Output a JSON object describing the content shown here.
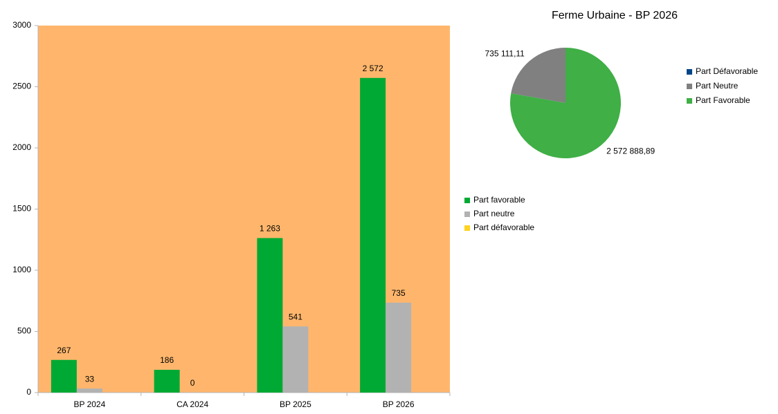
{
  "chart_data": [
    {
      "type": "bar",
      "categories": [
        "BP 2024",
        "CA 2024",
        "BP 2025",
        "BP 2026"
      ],
      "series": [
        {
          "name": "Part favorable",
          "color": "#00a933",
          "values": [
            267,
            186,
            1263,
            2572
          ],
          "value_labels": [
            "267",
            "186",
            "1 263",
            "2 572"
          ]
        },
        {
          "name": "Part neutre",
          "color": "#b2b2b2",
          "values": [
            33,
            0,
            541,
            735
          ]
        },
        {
          "name": "Part défavorable",
          "color": "#ffd320",
          "values": [
            null,
            null,
            null,
            null
          ]
        }
      ],
      "ylim": [
        0,
        3000
      ],
      "yticks": [
        0,
        500,
        1000,
        1500,
        2000,
        2500,
        3000
      ],
      "background": "#ffb66c",
      "legend": "right"
    },
    {
      "type": "pie",
      "title": "Ferme Urbaine - BP 2026",
      "series": [
        {
          "name": "Part Défavorable",
          "color": "#004586",
          "values": [
            0
          ]
        },
        {
          "name": "Part Neutre",
          "color": "#808080",
          "values": [
            735111.11
          ],
          "value_labels": [
            "735 111,11"
          ]
        },
        {
          "name": "Part Favorable",
          "color": "#3faf46",
          "values": [
            2572888.89
          ],
          "value_labels": [
            "2 572 888,89"
          ]
        }
      ],
      "legend": "right"
    }
  ]
}
